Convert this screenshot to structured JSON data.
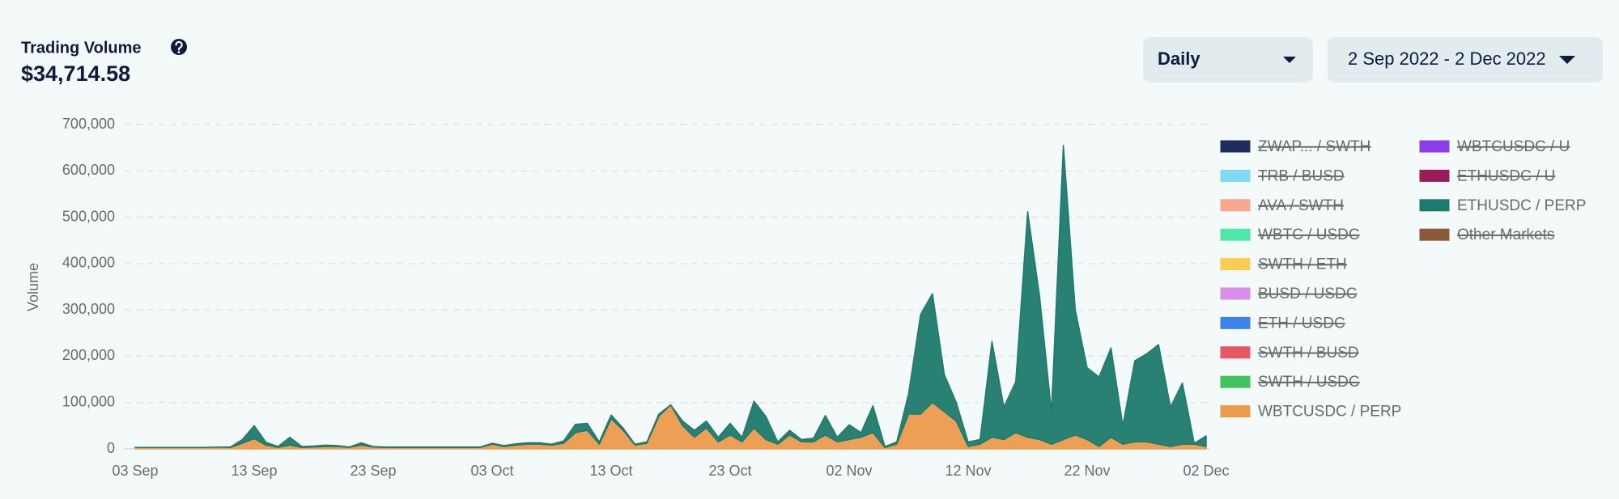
{
  "header": {
    "title": "Trading Volume",
    "total": "$34,714.58"
  },
  "controls": {
    "interval": "Daily",
    "date_range": "2 Sep 2022 - 2 Dec 2022"
  },
  "chart_data": {
    "type": "stacked_area",
    "y_label": "Volume",
    "categories": [
      "03 Sep",
      null,
      null,
      null,
      null,
      null,
      null,
      null,
      null,
      null,
      "13 Sep",
      null,
      null,
      null,
      null,
      null,
      null,
      null,
      null,
      null,
      "23 Sep",
      null,
      null,
      null,
      null,
      null,
      null,
      null,
      null,
      null,
      "03 Oct",
      null,
      null,
      null,
      null,
      null,
      null,
      null,
      null,
      null,
      "13 Oct",
      null,
      null,
      null,
      null,
      null,
      null,
      null,
      null,
      null,
      "23 Oct",
      null,
      null,
      null,
      null,
      null,
      null,
      null,
      null,
      null,
      "02 Nov",
      null,
      null,
      null,
      null,
      null,
      null,
      null,
      null,
      null,
      "12 Nov",
      null,
      null,
      null,
      null,
      null,
      null,
      null,
      null,
      null,
      "22 Nov",
      null,
      null,
      null,
      null,
      null,
      null,
      null,
      null,
      null,
      "02 Dec"
    ],
    "ylim": [
      0,
      700000
    ],
    "yticks": [
      0,
      {
        "value": 100000,
        "label": "100,000"
      },
      {
        "value": 200000,
        "label": "200,000"
      },
      {
        "value": 300000,
        "label": "300,000"
      },
      {
        "value": 400000,
        "label": "400,000"
      },
      {
        "value": 500000,
        "label": "500,000"
      },
      {
        "value": 600000,
        "label": "600,000"
      },
      {
        "value": 700000,
        "label": "700,000"
      }
    ],
    "grid": true,
    "legend": "right",
    "series": [
      {
        "name": "ZWAP... / SWTH",
        "color": "#1f2d5c",
        "hidden": true
      },
      {
        "name": "TRB / BUSD",
        "color": "#7fd9f2",
        "hidden": true
      },
      {
        "name": "AVA / SWTH",
        "color": "#f7a690",
        "hidden": true
      },
      {
        "name": "WBTC / USDC",
        "color": "#4fe6a9",
        "hidden": true
      },
      {
        "name": "SWTH / ETH",
        "color": "#fdca52",
        "hidden": true
      },
      {
        "name": "BUSD / USDC",
        "color": "#d98fe9",
        "hidden": true
      },
      {
        "name": "ETH / USDC",
        "color": "#3c84e9",
        "hidden": true
      },
      {
        "name": "SWTH / BUSD",
        "color": "#e85762",
        "hidden": true
      },
      {
        "name": "SWTH / USDC",
        "color": "#3fc35c",
        "hidden": true
      },
      {
        "name": "WBTCUSDC / PERP",
        "color": "#ec9b4c",
        "hidden": false,
        "values": [
          3000,
          3000,
          3000,
          3000,
          3000,
          3000,
          3000,
          4000,
          3000,
          12000,
          22000,
          8000,
          3000,
          8000,
          3000,
          4000,
          5000,
          5000,
          3000,
          8000,
          4000,
          3000,
          3000,
          3000,
          3000,
          3000,
          3000,
          3000,
          3000,
          3000,
          10000,
          5000,
          8000,
          10000,
          10000,
          8000,
          12000,
          35000,
          40000,
          10000,
          65000,
          40000,
          8000,
          12000,
          70000,
          95000,
          50000,
          25000,
          45000,
          15000,
          30000,
          15000,
          45000,
          20000,
          10000,
          30000,
          15000,
          15000,
          30000,
          15000,
          20000,
          25000,
          35000,
          3000,
          10000,
          75000,
          75000,
          100000,
          80000,
          60000,
          5000,
          10000,
          25000,
          20000,
          35000,
          25000,
          20000,
          10000,
          20000,
          30000,
          20000,
          5000,
          25000,
          10000,
          15000,
          15000,
          10000,
          5000,
          10000,
          10000,
          5000
        ]
      },
      {
        "name": "WBTCUSDC / U",
        "color": "#8c3de9",
        "hidden": true
      },
      {
        "name": "ETHUSDC / U",
        "color": "#9c1b5b",
        "hidden": true
      },
      {
        "name": "ETHUSDC / PERP",
        "color": "#1e7a6c",
        "hidden": false,
        "values": [
          0,
          0,
          0,
          0,
          0,
          0,
          0,
          0,
          1000,
          8000,
          28000,
          6000,
          2000,
          17000,
          2000,
          2000,
          3000,
          2000,
          1000,
          5000,
          1000,
          1000,
          1000,
          1000,
          1000,
          1000,
          1000,
          1000,
          1000,
          1000,
          2000,
          2000,
          3000,
          3000,
          3000,
          2000,
          5000,
          18000,
          15000,
          5000,
          8000,
          5000,
          2000,
          3000,
          5000,
          0,
          10000,
          15000,
          15000,
          10000,
          25000,
          10000,
          58000,
          50000,
          5000,
          10000,
          5000,
          8000,
          42000,
          10000,
          32000,
          10000,
          58000,
          2000,
          5000,
          45000,
          215000,
          235000,
          80000,
          40000,
          10000,
          10000,
          207000,
          70000,
          110000,
          487000,
          310000,
          70000,
          635000,
          270000,
          155000,
          150000,
          193000,
          40000,
          175000,
          190000,
          215000,
          85000,
          132000,
          2000,
          23000
        ]
      },
      {
        "name": "Other Markets",
        "color": "#8b5a3b",
        "hidden": true
      }
    ]
  }
}
